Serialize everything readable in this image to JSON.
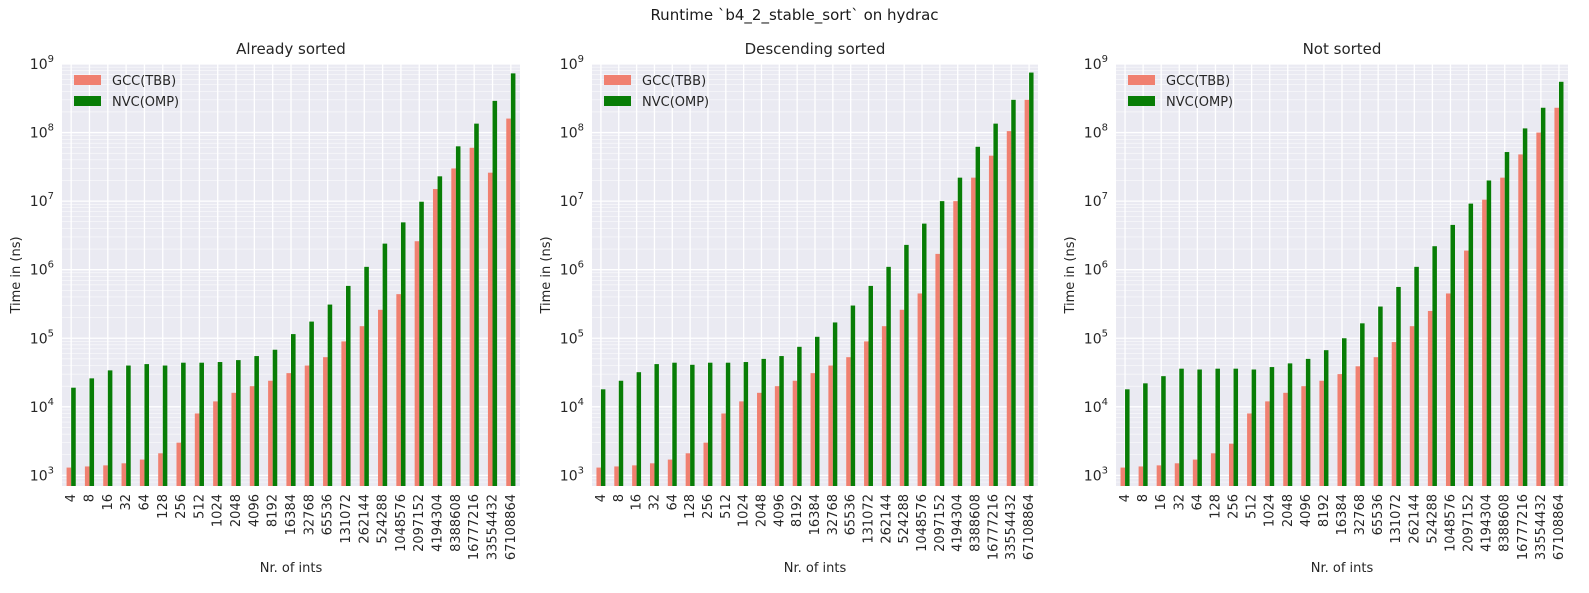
{
  "figure": {
    "suptitle": "Runtime `b4_2_stable_sort` on hydrac",
    "colors": {
      "gcc": "#f08070",
      "nvc": "#087d06",
      "plot_bg": "#eaeaf2",
      "grid": "#ffffff"
    }
  },
  "chart_data": [
    {
      "type": "bar",
      "title": "Already sorted",
      "xlabel": "Nr. of ints",
      "ylabel": "Time in (ns)",
      "yscale": "log",
      "ylim": [
        700,
        1000000000
      ],
      "ytick_labels": [
        "10^3",
        "10^4",
        "10^5",
        "10^6",
        "10^7",
        "10^8",
        "10^9"
      ],
      "legend_position": "top-left",
      "grid": true,
      "categories": [
        "4",
        "8",
        "16",
        "32",
        "64",
        "128",
        "256",
        "512",
        "1024",
        "2048",
        "4096",
        "8192",
        "16384",
        "32768",
        "65536",
        "131072",
        "262144",
        "524288",
        "1048576",
        "2097152",
        "4194304",
        "8388608",
        "16777216",
        "33554432",
        "67108864"
      ],
      "series": [
        {
          "name": "GCC(TBB)",
          "values": [
            1300,
            1350,
            1400,
            1500,
            1700,
            2100,
            3000,
            8000,
            12000,
            16000,
            20000,
            24000,
            31000,
            40000,
            53000,
            90000,
            150000,
            260000,
            440000,
            2600000,
            15000000,
            30000000,
            60000000,
            26000000,
            160000000
          ]
        },
        {
          "name": "NVC(OMP)",
          "values": [
            19000,
            26000,
            34000,
            40000,
            42000,
            40000,
            44000,
            44000,
            45000,
            48000,
            55000,
            68000,
            115000,
            175000,
            310000,
            580000,
            1100000,
            2400000,
            4900000,
            9800000,
            23000000,
            63000000,
            135000000,
            290000000,
            730000000
          ]
        }
      ]
    },
    {
      "type": "bar",
      "title": "Descending sorted",
      "xlabel": "Nr. of ints",
      "ylabel": "Time in (ns)",
      "yscale": "log",
      "ylim": [
        700,
        1000000000
      ],
      "ytick_labels": [
        "10^3",
        "10^4",
        "10^5",
        "10^6",
        "10^7",
        "10^8",
        "10^9"
      ],
      "legend_position": "top-left",
      "grid": true,
      "categories": [
        "4",
        "8",
        "16",
        "32",
        "64",
        "128",
        "256",
        "512",
        "1024",
        "2048",
        "4096",
        "8192",
        "16384",
        "32768",
        "65536",
        "131072",
        "262144",
        "524288",
        "1048576",
        "2097152",
        "4194304",
        "8388608",
        "16777216",
        "33554432",
        "67108864"
      ],
      "series": [
        {
          "name": "GCC(TBB)",
          "values": [
            1300,
            1350,
            1400,
            1500,
            1700,
            2100,
            3000,
            8000,
            12000,
            16000,
            20000,
            24000,
            31000,
            40000,
            53000,
            90000,
            150000,
            260000,
            450000,
            1700000,
            10000000,
            22000000,
            46000000,
            105000000,
            300000000
          ]
        },
        {
          "name": "NVC(OMP)",
          "values": [
            18000,
            24000,
            32000,
            42000,
            44000,
            41000,
            44000,
            44000,
            45000,
            50000,
            55000,
            75000,
            105000,
            170000,
            300000,
            580000,
            1100000,
            2300000,
            4700000,
            10000000,
            22000000,
            62000000,
            135000000,
            300000000,
            750000000
          ]
        }
      ]
    },
    {
      "type": "bar",
      "title": "Not sorted",
      "xlabel": "Nr. of ints",
      "ylabel": "Time in (ns)",
      "yscale": "log",
      "ylim": [
        700,
        1000000000
      ],
      "ytick_labels": [
        "10^3",
        "10^4",
        "10^5",
        "10^6",
        "10^7",
        "10^8",
        "10^9"
      ],
      "legend_position": "top-left",
      "grid": true,
      "categories": [
        "4",
        "8",
        "16",
        "32",
        "64",
        "128",
        "256",
        "512",
        "1024",
        "2048",
        "4096",
        "8192",
        "16384",
        "32768",
        "65536",
        "131072",
        "262144",
        "524288",
        "1048576",
        "2097152",
        "4194304",
        "8388608",
        "16777216",
        "33554432",
        "67108864"
      ],
      "series": [
        {
          "name": "GCC(TBB)",
          "values": [
            1300,
            1350,
            1400,
            1500,
            1700,
            2100,
            2900,
            8000,
            12000,
            16000,
            20000,
            24000,
            30000,
            39000,
            53000,
            88000,
            150000,
            250000,
            450000,
            1900000,
            10500000,
            22000000,
            48000000,
            100000000,
            230000000
          ]
        },
        {
          "name": "NVC(OMP)",
          "values": [
            18000,
            22000,
            28000,
            36000,
            35000,
            36000,
            36000,
            35000,
            38000,
            43000,
            50000,
            67000,
            100000,
            165000,
            290000,
            560000,
            1100000,
            2200000,
            4500000,
            9200000,
            20000000,
            52000000,
            115000000,
            230000000,
            550000000
          ]
        }
      ]
    }
  ]
}
